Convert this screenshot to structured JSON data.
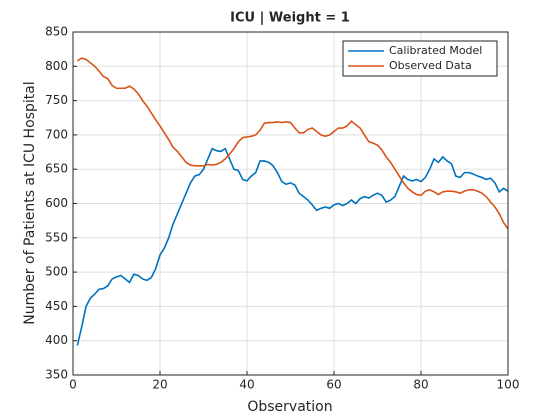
{
  "chart_data": {
    "type": "line",
    "title": "ICU | Weight = 1",
    "xlabel": "Observation",
    "ylabel": "Number of Patients at ICU Hospital",
    "x": [
      1,
      2,
      3,
      4,
      5,
      6,
      7,
      8,
      9,
      10,
      11,
      12,
      13,
      14,
      15,
      16,
      17,
      18,
      19,
      20,
      21,
      22,
      23,
      24,
      25,
      26,
      27,
      28,
      29,
      30,
      31,
      32,
      33,
      34,
      35,
      36,
      37,
      38,
      39,
      40,
      41,
      42,
      43,
      44,
      45,
      46,
      47,
      48,
      49,
      50,
      51,
      52,
      53,
      54,
      55,
      56,
      57,
      58,
      59,
      60,
      61,
      62,
      63,
      64,
      65,
      66,
      67,
      68,
      69,
      70,
      71,
      72,
      73,
      74,
      75,
      76,
      77,
      78,
      79,
      80,
      81,
      82,
      83,
      84,
      85,
      86,
      87,
      88,
      89,
      90,
      91,
      92,
      93,
      94,
      95,
      96,
      97,
      98,
      99,
      100
    ],
    "series": [
      {
        "name": "Calibrated Model",
        "color": "#0072BD",
        "values": [
          393,
          420,
          450,
          462,
          468,
          475,
          476,
          480,
          490,
          493,
          495,
          490,
          485,
          497,
          495,
          490,
          488,
          492,
          505,
          525,
          535,
          550,
          570,
          585,
          600,
          615,
          630,
          640,
          642,
          650,
          665,
          680,
          677,
          676,
          680,
          665,
          650,
          648,
          635,
          633,
          640,
          645,
          662,
          662,
          660,
          655,
          645,
          632,
          628,
          630,
          627,
          615,
          610,
          605,
          598,
          590,
          593,
          595,
          593,
          598,
          600,
          597,
          600,
          605,
          600,
          607,
          610,
          608,
          612,
          615,
          612,
          602,
          605,
          610,
          625,
          640,
          635,
          633,
          635,
          632,
          638,
          650,
          665,
          660,
          668,
          662,
          658,
          640,
          638,
          645,
          645,
          643,
          640,
          638,
          635,
          637,
          630,
          617,
          622,
          618
        ]
      },
      {
        "name": "Observed Data",
        "color": "#D95319",
        "values": [
          808,
          812,
          810,
          805,
          800,
          793,
          785,
          782,
          772,
          768,
          768,
          768,
          771,
          767,
          760,
          750,
          742,
          732,
          722,
          713,
          703,
          693,
          682,
          676,
          668,
          660,
          656,
          655,
          655,
          655,
          657,
          656,
          657,
          660,
          665,
          672,
          680,
          690,
          696,
          697,
          698,
          700,
          707,
          717,
          718,
          718,
          719,
          718,
          719,
          718,
          710,
          703,
          703,
          708,
          710,
          705,
          700,
          698,
          700,
          705,
          710,
          710,
          713,
          720,
          715,
          710,
          700,
          690,
          688,
          685,
          678,
          668,
          660,
          650,
          640,
          630,
          622,
          617,
          613,
          612,
          618,
          620,
          617,
          613,
          617,
          618,
          618,
          617,
          615,
          618,
          620,
          620,
          618,
          615,
          610,
          602,
          595,
          585,
          572,
          563
        ]
      }
    ],
    "xlim": [
      0,
      100
    ],
    "xticks": [
      0,
      20,
      40,
      60,
      80,
      100
    ],
    "ylim": [
      350,
      850
    ],
    "yticks": [
      350,
      400,
      450,
      500,
      550,
      600,
      650,
      700,
      750,
      800,
      850
    ],
    "grid": true,
    "legend": "northeast"
  }
}
